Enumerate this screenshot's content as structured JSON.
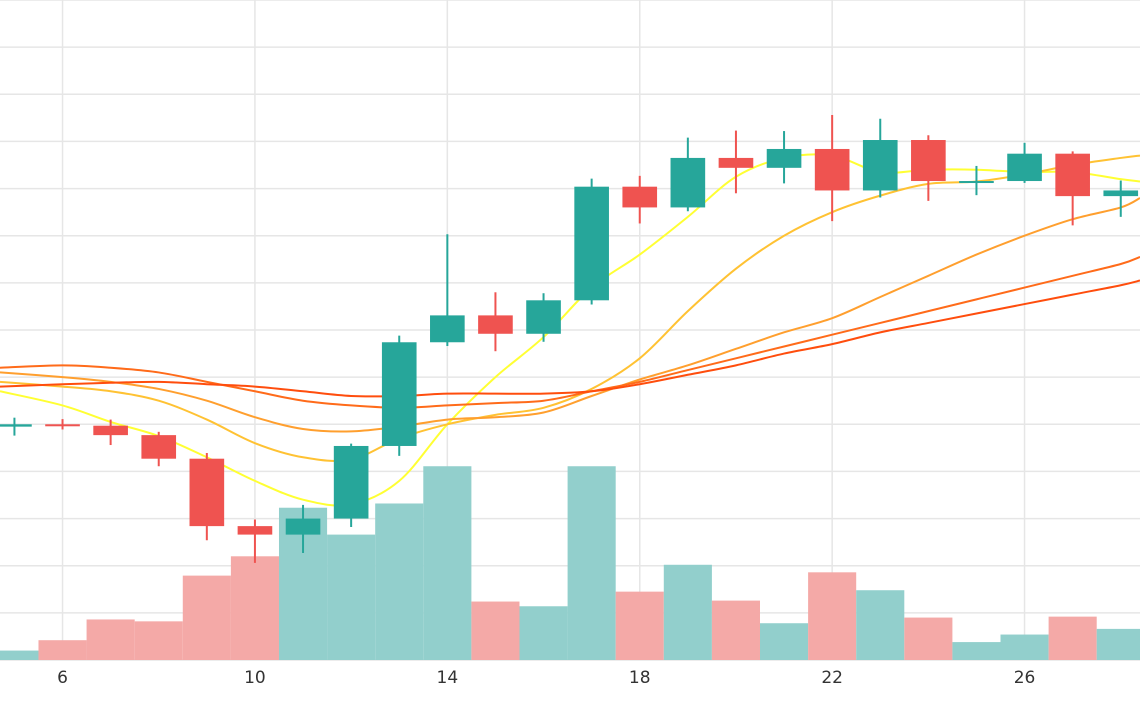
{
  "chart_data": {
    "type": "candlestick",
    "x_ticks": [
      6,
      10,
      14,
      18,
      22,
      26
    ],
    "xlim": [
      4.7,
      28.4
    ],
    "ylim": [
      0,
      140
    ],
    "grid": true,
    "colors": {
      "up": "#26a69a",
      "down": "#ef5350",
      "volume_up": "#92cfcc",
      "volume_down": "#f4a9a7",
      "ma": [
        "#ffff33",
        "#ffc233",
        "#ff9f2e",
        "#ff6b1a",
        "#ff4d0d"
      ],
      "grid": "#e6e6e6"
    },
    "candles": [
      {
        "x": 5,
        "open": 49.5,
        "high": 51.4,
        "low": 47.6,
        "close": 50.0
      },
      {
        "x": 6,
        "open": 50.0,
        "high": 51.1,
        "low": 48.9,
        "close": 49.7
      },
      {
        "x": 7,
        "open": 49.7,
        "high": 51.0,
        "low": 45.6,
        "close": 47.7
      },
      {
        "x": 8,
        "open": 47.7,
        "high": 48.4,
        "low": 41.1,
        "close": 42.7
      },
      {
        "x": 9,
        "open": 42.7,
        "high": 43.9,
        "low": 25.4,
        "close": 28.4
      },
      {
        "x": 10,
        "open": 28.4,
        "high": 29.8,
        "low": 20.6,
        "close": 26.6
      },
      {
        "x": 11,
        "open": 26.6,
        "high": 32.9,
        "low": 22.7,
        "close": 30.0
      },
      {
        "x": 12,
        "open": 30.0,
        "high": 45.9,
        "low": 28.2,
        "close": 45.4
      },
      {
        "x": 13,
        "open": 45.4,
        "high": 68.8,
        "low": 43.3,
        "close": 67.4
      },
      {
        "x": 14,
        "open": 67.4,
        "high": 90.3,
        "low": 66.6,
        "close": 73.1
      },
      {
        "x": 15,
        "open": 73.1,
        "high": 78.0,
        "low": 65.5,
        "close": 69.2
      },
      {
        "x": 16,
        "open": 69.2,
        "high": 77.8,
        "low": 67.5,
        "close": 76.3
      },
      {
        "x": 17,
        "open": 76.3,
        "high": 102.1,
        "low": 75.4,
        "close": 100.4
      },
      {
        "x": 18,
        "open": 100.4,
        "high": 102.7,
        "low": 92.6,
        "close": 96.0
      },
      {
        "x": 19,
        "open": 96.0,
        "high": 110.8,
        "low": 95.2,
        "close": 106.5
      },
      {
        "x": 20,
        "open": 106.5,
        "high": 112.3,
        "low": 99.0,
        "close": 104.4
      },
      {
        "x": 21,
        "open": 104.4,
        "high": 112.2,
        "low": 101.1,
        "close": 108.4
      },
      {
        "x": 22,
        "open": 108.4,
        "high": 115.6,
        "low": 93.1,
        "close": 99.6
      },
      {
        "x": 23,
        "open": 99.6,
        "high": 114.8,
        "low": 98.1,
        "close": 110.3
      },
      {
        "x": 24,
        "open": 110.3,
        "high": 111.3,
        "low": 97.4,
        "close": 101.6
      },
      {
        "x": 25,
        "open": 101.6,
        "high": 104.8,
        "low": 98.6,
        "close": 101.6
      },
      {
        "x": 26,
        "open": 101.6,
        "high": 109.7,
        "low": 101.2,
        "close": 107.4
      },
      {
        "x": 27,
        "open": 107.4,
        "high": 107.9,
        "low": 92.2,
        "close": 98.4
      },
      {
        "x": 28,
        "open": 98.4,
        "high": 101.7,
        "low": 94.0,
        "close": 99.6
      }
    ],
    "volume": [
      {
        "x": 5,
        "value": 2.0,
        "dir": "up"
      },
      {
        "x": 6,
        "value": 4.2,
        "dir": "down"
      },
      {
        "x": 7,
        "value": 8.6,
        "dir": "down"
      },
      {
        "x": 8,
        "value": 8.2,
        "dir": "down"
      },
      {
        "x": 9,
        "value": 17.9,
        "dir": "down"
      },
      {
        "x": 10,
        "value": 22.0,
        "dir": "down"
      },
      {
        "x": 11,
        "value": 32.3,
        "dir": "up"
      },
      {
        "x": 12,
        "value": 26.6,
        "dir": "up"
      },
      {
        "x": 13,
        "value": 33.2,
        "dir": "up"
      },
      {
        "x": 14,
        "value": 41.1,
        "dir": "up"
      },
      {
        "x": 15,
        "value": 12.4,
        "dir": "down"
      },
      {
        "x": 16,
        "value": 11.4,
        "dir": "up"
      },
      {
        "x": 17,
        "value": 41.1,
        "dir": "up"
      },
      {
        "x": 18,
        "value": 14.5,
        "dir": "down"
      },
      {
        "x": 19,
        "value": 20.2,
        "dir": "up"
      },
      {
        "x": 20,
        "value": 12.6,
        "dir": "down"
      },
      {
        "x": 21,
        "value": 7.8,
        "dir": "up"
      },
      {
        "x": 22,
        "value": 18.6,
        "dir": "down"
      },
      {
        "x": 23,
        "value": 14.8,
        "dir": "up"
      },
      {
        "x": 24,
        "value": 9.0,
        "dir": "down"
      },
      {
        "x": 25,
        "value": 3.8,
        "dir": "up"
      },
      {
        "x": 26,
        "value": 5.4,
        "dir": "up"
      },
      {
        "x": 27,
        "value": 9.2,
        "dir": "down"
      },
      {
        "x": 28,
        "value": 6.6,
        "dir": "up"
      }
    ],
    "moving_averages": [
      {
        "x": [
          4.7,
          6,
          7,
          8,
          9,
          10,
          11,
          12,
          13,
          14,
          15,
          16,
          17,
          18,
          19,
          20,
          21,
          22,
          23,
          24,
          25,
          26,
          27,
          28,
          28.4
        ],
        "y": [
          57.0,
          54.0,
          50.5,
          47.5,
          43.0,
          38.0,
          34.0,
          33.0,
          38.0,
          50.0,
          60.0,
          68.5,
          79.0,
          86.0,
          94.0,
          102.5,
          106.5,
          107.0,
          103.5,
          104.0,
          104.0,
          103.5,
          103.5,
          102.0,
          101.5
        ]
      },
      {
        "x": [
          4.7,
          6,
          7,
          8,
          9,
          10,
          11,
          12,
          13,
          14,
          15,
          16,
          17,
          18,
          19,
          20,
          21,
          22,
          23,
          24,
          25,
          26,
          27,
          28,
          28.4
        ],
        "y": [
          59.0,
          58.0,
          57.0,
          55.0,
          51.0,
          46.0,
          43.0,
          42.5,
          47.0,
          50.0,
          52.0,
          53.5,
          57.5,
          64.0,
          74.0,
          83.0,
          90.0,
          95.0,
          98.5,
          101.0,
          101.5,
          103.0,
          105.0,
          106.5,
          107.0
        ]
      },
      {
        "x": [
          4.7,
          6,
          7,
          8,
          9,
          10,
          11,
          12,
          13,
          14,
          15,
          16,
          17,
          18,
          19,
          20,
          21,
          22,
          23,
          24,
          25,
          26,
          27,
          28,
          28.4
        ],
        "y": [
          61.0,
          60.0,
          59.0,
          57.5,
          55.0,
          51.5,
          49.0,
          48.5,
          49.5,
          51.0,
          51.5,
          52.5,
          56.0,
          59.5,
          62.5,
          66.0,
          69.5,
          72.5,
          77.0,
          81.5,
          86.0,
          90.0,
          93.5,
          96.0,
          98.0
        ]
      },
      {
        "x": [
          4.7,
          6,
          7,
          8,
          9,
          10,
          11,
          12,
          13,
          14,
          15,
          16,
          17,
          18,
          19,
          20,
          21,
          22,
          23,
          24,
          25,
          26,
          27,
          28,
          28.4
        ],
        "y": [
          62.0,
          62.5,
          62.0,
          61.0,
          59.0,
          57.0,
          55.0,
          54.0,
          53.5,
          54.0,
          54.5,
          55.0,
          57.0,
          59.0,
          61.5,
          64.0,
          66.5,
          69.0,
          71.5,
          74.0,
          76.5,
          79.0,
          81.5,
          84.0,
          85.5
        ]
      },
      {
        "x": [
          4.7,
          6,
          7,
          8,
          9,
          10,
          11,
          12,
          13,
          14,
          15,
          16,
          17,
          18,
          19,
          20,
          21,
          22,
          23,
          24,
          25,
          26,
          27,
          28,
          28.4
        ],
        "y": [
          58.0,
          58.5,
          58.8,
          59.0,
          58.5,
          58.0,
          57.0,
          56.0,
          56.0,
          56.5,
          56.5,
          56.5,
          57.0,
          58.5,
          60.5,
          62.5,
          65.0,
          67.0,
          69.5,
          71.5,
          73.5,
          75.5,
          77.5,
          79.5,
          80.5
        ]
      }
    ]
  }
}
